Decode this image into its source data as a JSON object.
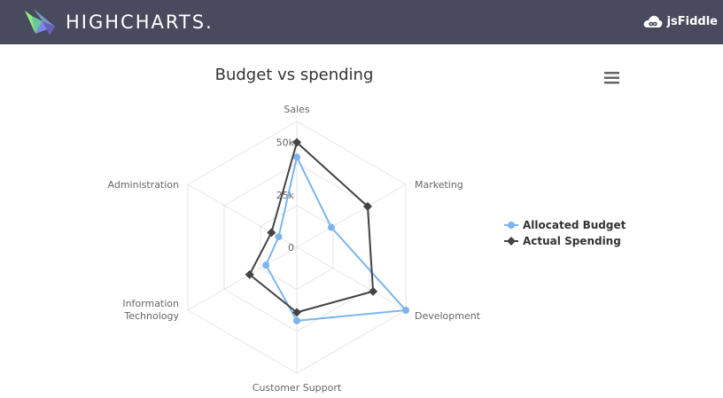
{
  "header": {
    "brand": "HIGHCHARTS.",
    "jsfiddle_label": "jsFiddle",
    "colors": {
      "bar": "#4a4a5e"
    }
  },
  "icons": {
    "logo": "highcharts-logo-icon",
    "cloud": "cloud-icon",
    "menu": "hamburger-menu-icon"
  },
  "chart_data": {
    "type": "radar",
    "title": "Budget vs spending",
    "categories": [
      "Sales",
      "Marketing",
      "Development",
      "Customer Support",
      "Information Technology",
      "Administration"
    ],
    "category_labels": [
      [
        "Sales"
      ],
      [
        "Marketing"
      ],
      [
        "Development"
      ],
      [
        "Customer Support"
      ],
      [
        "Information",
        "Technology"
      ],
      [
        "Administration"
      ]
    ],
    "radial_ticks": [
      "0",
      "25k",
      "50k"
    ],
    "radial_max": 60000,
    "series": [
      {
        "name": "Allocated Budget",
        "color": "#7cb5ec",
        "marker": "circle",
        "values": [
          43000,
          19000,
          60000,
          35000,
          17000,
          10000
        ]
      },
      {
        "name": "Actual Spending",
        "color": "#434348",
        "marker": "diamond",
        "values": [
          50000,
          39000,
          42000,
          31000,
          26000,
          14000
        ]
      }
    ],
    "legend_position": "right",
    "grid": "polygon"
  }
}
